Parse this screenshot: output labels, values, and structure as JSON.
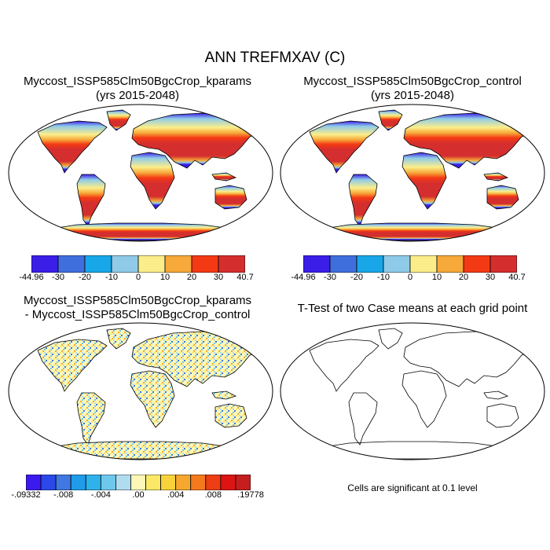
{
  "figure": {
    "title": "ANN TREFMXAV (C)",
    "panels": {
      "case1": {
        "title_line1": "Myccost_ISSP585Clm50BgcCrop_kparams",
        "title_line2": "(yrs 2015-2048)",
        "colorbar_labels": [
          "-44.96",
          "-30",
          "-20",
          "-10",
          "0",
          "10",
          "20",
          "30",
          "40.7"
        ]
      },
      "case2": {
        "title_line1": "Myccost_ISSP585Clm50BgcCrop_control",
        "title_line2": "(yrs 2015-2048)",
        "colorbar_labels": [
          "-44.96",
          "-30",
          "-20",
          "-10",
          "0",
          "10",
          "20",
          "30",
          "40.7"
        ]
      },
      "difference": {
        "title_line1": "Myccost_ISSP585Clm50BgcCrop_kparams",
        "title_line2": "- Myccost_ISSP585Clm50BgcCrop_control",
        "colorbar_labels": [
          "-.09332",
          "-.008",
          "-.004",
          ".00",
          ".004",
          ".008",
          ".19778"
        ]
      },
      "ttest": {
        "title_line1": "T-Test of two Case means at each grid point",
        "note": "Cells are significant at 0.1 level"
      }
    },
    "colors": {
      "abs_scale": [
        "#3a1ee8",
        "#3f6fdc",
        "#18a7e8",
        "#8fcbe8",
        "#fbee8a",
        "#f7a93a",
        "#f43a14",
        "#d42e2e"
      ],
      "diff_scale": [
        "#3b1af0",
        "#2b49e8",
        "#3f78e0",
        "#1f9be8",
        "#2fb2ec",
        "#6dc8ec",
        "#b0dcf0",
        "#fdf7b8",
        "#fbe866",
        "#f8d23a",
        "#f6a82e",
        "#f57a1e",
        "#ee3e14",
        "#dd1414",
        "#c41e1e"
      ]
    }
  }
}
